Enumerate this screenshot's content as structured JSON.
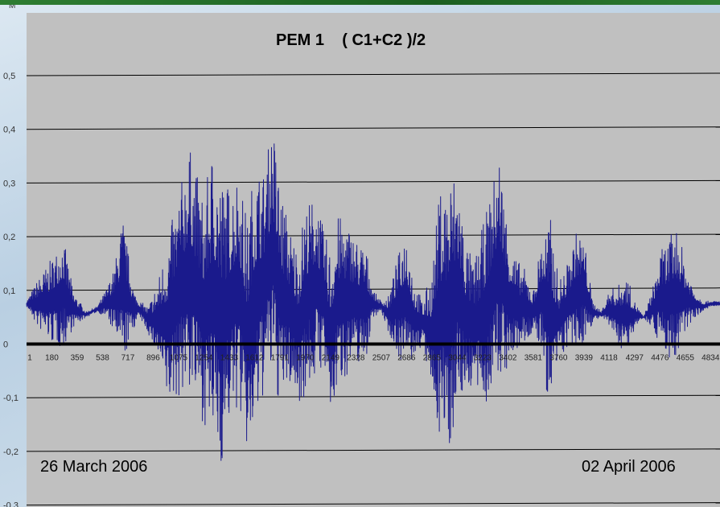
{
  "colors": {
    "plot_bg": "#c0c0c0",
    "series": "#1a1a8c",
    "zero_line": "#000000",
    "grid": "#000000"
  },
  "chart_data": {
    "type": "line",
    "title": "PEM 1    ( C1+C2 )/2",
    "y_unit": "M",
    "ylim": [
      -0.3,
      0.5
    ],
    "y_ticks": [
      "0,5",
      "0,4",
      "0,3",
      "0,2",
      "0,1",
      "0",
      "-0,1",
      "-0,2",
      "-0,3"
    ],
    "x_ticks": [
      "1",
      "180",
      "359",
      "538",
      "717",
      "896",
      "1075",
      "1254",
      "1433",
      "1612",
      "1791",
      "1970",
      "2149",
      "2328",
      "2507",
      "2686",
      "2865",
      "3044",
      "3223",
      "3402",
      "3581",
      "3760",
      "3939",
      "4118",
      "4297",
      "4476",
      "4655",
      "4834"
    ],
    "x_range": [
      1,
      4900
    ],
    "start_label": "26 March 2006",
    "end_label": "02 April 2006",
    "grid": true,
    "series": [
      {
        "envelope_x": [
          1,
          80,
          180,
          260,
          330,
          420,
          500,
          560,
          620,
          680,
          760,
          800,
          860,
          930,
          1000,
          1075,
          1150,
          1254,
          1320,
          1380,
          1433,
          1500,
          1560,
          1612,
          1680,
          1740,
          1791,
          1860,
          1920,
          1970,
          2050,
          2100,
          2149,
          2200,
          2260,
          2328,
          2400,
          2450,
          2507,
          2560,
          2620,
          2686,
          2740,
          2800,
          2865,
          2920,
          2980,
          3044,
          3100,
          3160,
          3223,
          3280,
          3340,
          3402,
          3460,
          3520,
          3581,
          3640,
          3700,
          3760,
          3820,
          3880,
          3939,
          4000,
          4060,
          4118,
          4180,
          4240,
          4297,
          4360,
          4420,
          4476,
          4540,
          4600,
          4655,
          4720,
          4780,
          4834,
          4900
        ],
        "upper": [
          0.08,
          0.12,
          0.16,
          0.2,
          0.1,
          0.06,
          0.07,
          0.1,
          0.14,
          0.24,
          0.1,
          0.08,
          0.07,
          0.12,
          0.2,
          0.28,
          0.37,
          0.27,
          0.38,
          0.31,
          0.3,
          0.33,
          0.23,
          0.34,
          0.32,
          0.42,
          0.3,
          0.22,
          0.18,
          0.26,
          0.28,
          0.21,
          0.18,
          0.24,
          0.23,
          0.2,
          0.18,
          0.1,
          0.08,
          0.09,
          0.16,
          0.22,
          0.12,
          0.08,
          0.14,
          0.29,
          0.31,
          0.33,
          0.2,
          0.15,
          0.22,
          0.28,
          0.36,
          0.22,
          0.16,
          0.14,
          0.1,
          0.2,
          0.24,
          0.12,
          0.15,
          0.21,
          0.2,
          0.08,
          0.06,
          0.1,
          0.11,
          0.13,
          0.08,
          0.05,
          0.1,
          0.17,
          0.2,
          0.22,
          0.15,
          0.1,
          0.08,
          0.08,
          0.08
        ],
        "lower": [
          0.07,
          0.03,
          0.0,
          -0.01,
          0.03,
          0.05,
          0.06,
          0.05,
          0.02,
          -0.04,
          0.03,
          0.05,
          0.02,
          -0.03,
          -0.12,
          -0.1,
          -0.09,
          -0.15,
          -0.19,
          -0.23,
          -0.15,
          -0.12,
          -0.21,
          -0.18,
          -0.09,
          -0.07,
          -0.12,
          -0.08,
          -0.11,
          -0.1,
          -0.06,
          -0.04,
          -0.15,
          -0.08,
          -0.06,
          -0.04,
          -0.03,
          0.05,
          0.06,
          0.02,
          -0.02,
          -0.05,
          -0.03,
          0.0,
          -0.1,
          -0.17,
          -0.21,
          -0.12,
          -0.09,
          -0.08,
          -0.12,
          -0.1,
          -0.07,
          -0.05,
          -0.02,
          0.0,
          0.02,
          -0.02,
          -0.14,
          -0.03,
          -0.01,
          -0.02,
          0.0,
          0.04,
          0.05,
          0.03,
          0.0,
          -0.02,
          0.03,
          0.05,
          0.03,
          0.0,
          -0.03,
          -0.04,
          0.02,
          0.05,
          0.06,
          0.07,
          0.07
        ]
      }
    ]
  }
}
